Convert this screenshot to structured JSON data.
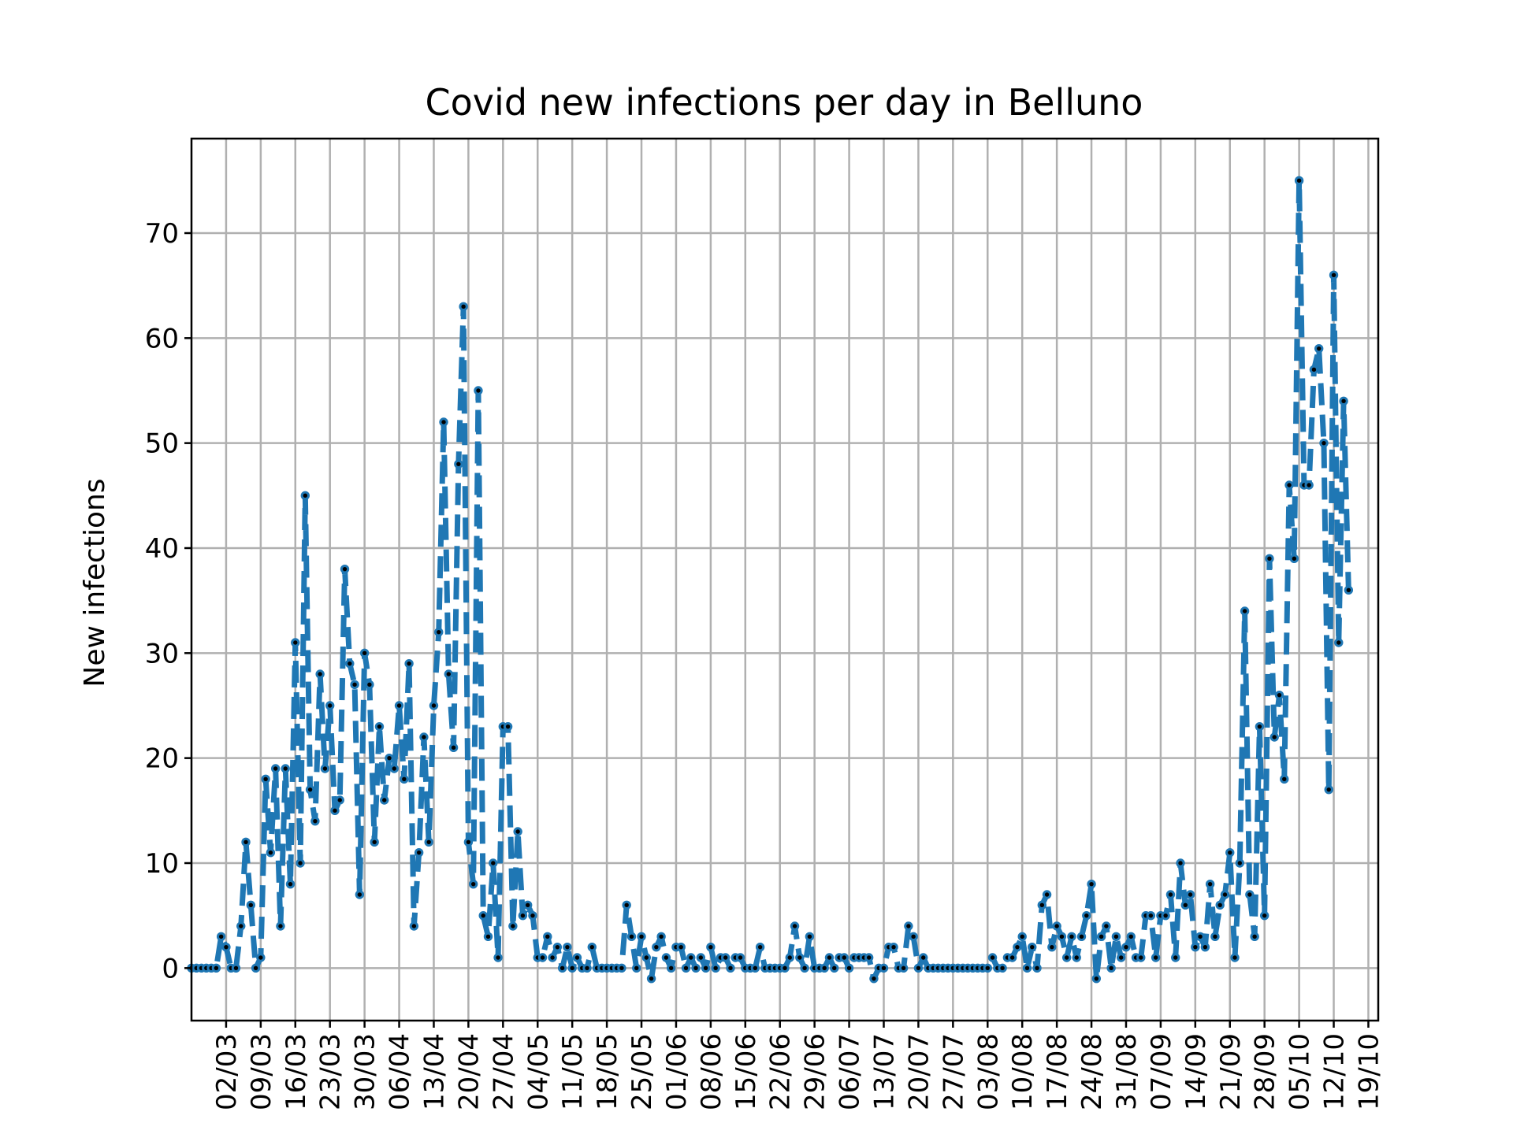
{
  "chart_data": {
    "type": "line",
    "title": "Covid new infections per day in Belluno",
    "xlabel": "",
    "ylabel": "New infections",
    "ylim": [
      -5,
      79
    ],
    "yticks": [
      0,
      10,
      20,
      30,
      40,
      50,
      60,
      70
    ],
    "grid": true,
    "legend": "none",
    "colors": {
      "line": "#1f77b4",
      "marker_face": "#000000",
      "marker_edge": "#1f77b4"
    },
    "x_start": "2020-02-24",
    "x_end": "2020-10-21",
    "xticks": [
      {
        "date": "2020-03-02",
        "label": "02/03"
      },
      {
        "date": "2020-03-09",
        "label": "09/03"
      },
      {
        "date": "2020-03-16",
        "label": "16/03"
      },
      {
        "date": "2020-03-23",
        "label": "23/03"
      },
      {
        "date": "2020-03-30",
        "label": "30/03"
      },
      {
        "date": "2020-04-06",
        "label": "06/04"
      },
      {
        "date": "2020-04-13",
        "label": "13/04"
      },
      {
        "date": "2020-04-20",
        "label": "20/04"
      },
      {
        "date": "2020-04-27",
        "label": "27/04"
      },
      {
        "date": "2020-05-04",
        "label": "04/05"
      },
      {
        "date": "2020-05-11",
        "label": "11/05"
      },
      {
        "date": "2020-05-18",
        "label": "18/05"
      },
      {
        "date": "2020-05-25",
        "label": "25/05"
      },
      {
        "date": "2020-06-01",
        "label": "01/06"
      },
      {
        "date": "2020-06-08",
        "label": "08/06"
      },
      {
        "date": "2020-06-15",
        "label": "15/06"
      },
      {
        "date": "2020-06-22",
        "label": "22/06"
      },
      {
        "date": "2020-06-29",
        "label": "29/06"
      },
      {
        "date": "2020-07-06",
        "label": "06/07"
      },
      {
        "date": "2020-07-13",
        "label": "13/07"
      },
      {
        "date": "2020-07-20",
        "label": "20/07"
      },
      {
        "date": "2020-07-27",
        "label": "27/07"
      },
      {
        "date": "2020-08-03",
        "label": "03/08"
      },
      {
        "date": "2020-08-10",
        "label": "10/08"
      },
      {
        "date": "2020-08-17",
        "label": "17/08"
      },
      {
        "date": "2020-08-24",
        "label": "24/08"
      },
      {
        "date": "2020-08-31",
        "label": "31/08"
      },
      {
        "date": "2020-09-07",
        "label": "07/09"
      },
      {
        "date": "2020-09-14",
        "label": "14/09"
      },
      {
        "date": "2020-09-21",
        "label": "21/09"
      },
      {
        "date": "2020-09-28",
        "label": "28/09"
      },
      {
        "date": "2020-10-05",
        "label": "05/10"
      },
      {
        "date": "2020-10-12",
        "label": "12/10"
      },
      {
        "date": "2020-10-19",
        "label": "19/10"
      }
    ],
    "series": [
      {
        "name": "",
        "start_date": "2020-02-24",
        "values": [
          0,
          0,
          0,
          0,
          0,
          0,
          3,
          2,
          0,
          0,
          4,
          12,
          6,
          0,
          1,
          18,
          11,
          19,
          4,
          19,
          8,
          31,
          10,
          45,
          17,
          14,
          28,
          19,
          25,
          15,
          16,
          38,
          29,
          27,
          7,
          30,
          27,
          12,
          23,
          16,
          20,
          19,
          25,
          18,
          29,
          4,
          11,
          22,
          12,
          25,
          32,
          52,
          28,
          21,
          48,
          63,
          12,
          8,
          55,
          5,
          3,
          10,
          1,
          23,
          23,
          4,
          13,
          5,
          6,
          5,
          1,
          1,
          3,
          1,
          2,
          0,
          2,
          0,
          1,
          0,
          0,
          2,
          0,
          0,
          0,
          0,
          0,
          0,
          6,
          3,
          0,
          3,
          1,
          -1,
          2,
          3,
          1,
          0,
          2,
          2,
          0,
          1,
          0,
          1,
          0,
          2,
          0,
          1,
          1,
          0,
          1,
          1,
          0,
          0,
          0,
          2,
          0,
          0,
          0,
          0,
          0,
          1,
          4,
          1,
          0,
          3,
          0,
          0,
          0,
          1,
          0,
          1,
          1,
          0,
          1,
          1,
          1,
          1,
          -1,
          0,
          0,
          2,
          2,
          0,
          0,
          4,
          3,
          0,
          1,
          0,
          0,
          0,
          0,
          0,
          0,
          0,
          0,
          0,
          0,
          0,
          0,
          0,
          1,
          0,
          0,
          1,
          1,
          2,
          3,
          0,
          2,
          0,
          6,
          7,
          2,
          4,
          3,
          1,
          3,
          1,
          3,
          5,
          8,
          -1,
          3,
          4,
          0,
          3,
          1,
          2,
          3,
          1,
          1,
          5,
          5,
          1,
          5,
          5,
          7,
          1,
          10,
          6,
          7,
          2,
          3,
          2,
          8,
          3,
          6,
          7,
          11,
          1,
          10,
          34,
          7,
          3,
          23,
          5,
          39,
          22,
          26,
          18,
          46,
          39,
          75,
          46,
          46,
          57,
          59,
          50,
          17,
          66,
          31,
          54,
          36
        ]
      }
    ]
  }
}
